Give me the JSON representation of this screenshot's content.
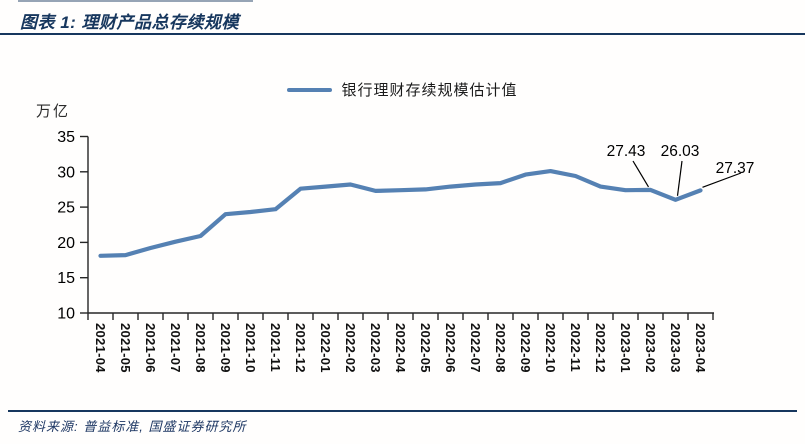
{
  "header": {
    "title": "图表 1: 理财产品总存续规模"
  },
  "legend": {
    "label": "银行理财存续规模估计值"
  },
  "footer": {
    "source_label": "资料来源: 普益标准, 国盛证券研究所"
  },
  "colors": {
    "accent_navy": "#17375E",
    "line_blue": "#5581B3",
    "axis_black": "#262626",
    "label_black": "#111111"
  },
  "chart_data": {
    "type": "line",
    "title": "理财产品总存续规模",
    "unit_label": "万亿",
    "xlabel": "",
    "ylabel": "万亿",
    "ylim": [
      10,
      35
    ],
    "yticks": [
      10,
      15,
      20,
      25,
      30,
      35
    ],
    "grid": false,
    "legend_position": "top",
    "line_color": "#5581B3",
    "categories": [
      "2021-04",
      "2021-05",
      "2021-06",
      "2021-07",
      "2021-08",
      "2021-09",
      "2021-10",
      "2021-11",
      "2021-12",
      "2022-01",
      "2022-02",
      "2022-03",
      "2022-04",
      "2022-05",
      "2022-06",
      "2022-07",
      "2022-08",
      "2022-09",
      "2022-10",
      "2022-11",
      "2022-12",
      "2023-01",
      "2023-02",
      "2023-03",
      "2023-04"
    ],
    "series": [
      {
        "name": "银行理财存续规模估计值",
        "values": [
          18.1,
          18.2,
          19.2,
          20.1,
          20.9,
          24.0,
          24.3,
          24.7,
          27.6,
          27.9,
          28.2,
          27.3,
          27.4,
          27.5,
          27.9,
          28.2,
          28.4,
          29.6,
          30.1,
          29.4,
          27.9,
          27.4,
          27.43,
          26.03,
          27.37
        ]
      }
    ],
    "annotations": [
      {
        "text": "27.43",
        "category": "2023-02",
        "value": 27.43
      },
      {
        "text": "26.03",
        "category": "2023-03",
        "value": 26.03
      },
      {
        "text": "27.37",
        "category": "2023-04",
        "value": 27.37
      }
    ]
  }
}
